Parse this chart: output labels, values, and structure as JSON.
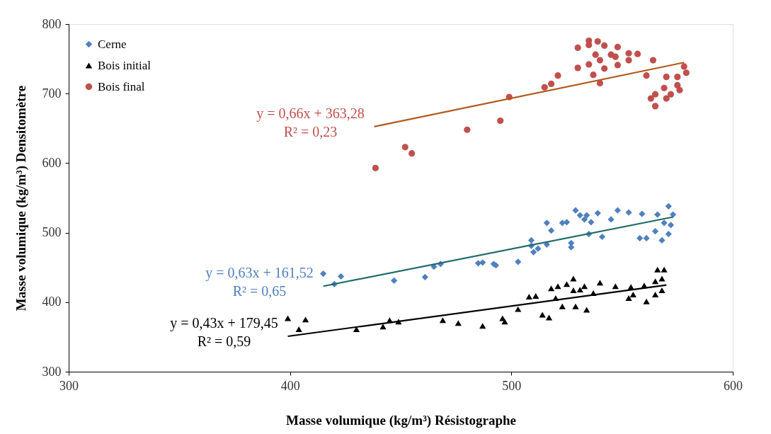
{
  "chart_data": {
    "type": "scatter",
    "xlabel": "Masse volumique (kg/m³) Résistographe",
    "ylabel": "Masse volumique (kg/m³) Densitomètre",
    "xlim": [
      300,
      600
    ],
    "xticks": [
      300,
      400,
      500,
      600
    ],
    "ylim": [
      300,
      800
    ],
    "yticks": [
      300,
      400,
      500,
      600,
      700,
      800
    ],
    "grid": false,
    "legend": "top left",
    "series": [
      {
        "name": "Cerne",
        "color": "#4f81bd",
        "marker": "diamond",
        "x": [
          415,
          420,
          423,
          447,
          461,
          465,
          468,
          485,
          487,
          492,
          493,
          503,
          509,
          509,
          510,
          512,
          516,
          516,
          518,
          523,
          525,
          527,
          527,
          529,
          531,
          533,
          534,
          536,
          539,
          535,
          541,
          545,
          548,
          553,
          559,
          558,
          561,
          565,
          568,
          571,
          569,
          572,
          566,
          571,
          573
        ],
        "values": [
          441,
          426,
          437,
          431,
          436,
          451,
          455,
          456,
          457,
          455,
          453,
          458,
          489,
          481,
          472,
          477,
          483,
          514,
          503,
          514,
          515,
          485,
          479,
          532,
          525,
          519,
          525,
          515,
          528,
          498,
          494,
          519,
          532,
          529,
          527,
          492,
          492,
          502,
          489,
          498,
          514,
          511,
          526,
          538,
          526
        ]
      },
      {
        "name": "Bois initial",
        "color": "#000000",
        "marker": "triangle",
        "x": [
          399,
          404,
          407,
          430,
          442,
          445,
          449,
          469,
          476,
          487,
          496,
          497,
          503,
          508,
          511,
          514,
          517,
          518,
          521,
          520,
          523,
          525,
          528,
          529,
          528,
          531,
          533,
          534,
          537,
          540,
          547,
          553,
          555,
          554,
          561,
          560,
          565,
          566,
          569,
          568,
          565,
          568
        ],
        "values": [
          377,
          361,
          375,
          361,
          365,
          374,
          372,
          374,
          370,
          366,
          377,
          372,
          390,
          408,
          409,
          382,
          378,
          420,
          423,
          406,
          394,
          426,
          434,
          394,
          417,
          418,
          423,
          389,
          413,
          428,
          423,
          406,
          411,
          422,
          401,
          424,
          430,
          447,
          447,
          434,
          411,
          417
        ]
      },
      {
        "name": "Bois final",
        "color": "#c0504d",
        "marker": "circle",
        "x": [
          438.6,
          452,
          455,
          480,
          495,
          499,
          515,
          518,
          521,
          530,
          530,
          535,
          535,
          539,
          542,
          548,
          538,
          535,
          540,
          545,
          547,
          537,
          540,
          542,
          548,
          553,
          557,
          553,
          564,
          561,
          570,
          575,
          578,
          579,
          569,
          575,
          563,
          565,
          570,
          572,
          576,
          565
        ],
        "values": [
          593,
          623,
          614,
          648,
          661,
          695,
          709,
          714,
          726,
          766,
          737,
          776,
          770,
          775,
          769,
          767,
          756,
          742,
          748,
          756,
          753,
          727,
          715,
          736,
          741,
          758,
          757,
          748,
          748,
          726,
          724,
          724,
          739,
          730,
          708,
          712,
          693,
          682,
          693,
          699,
          705,
          699
        ]
      },
      {
        "type": "line",
        "color": "#1f6b6b",
        "x": [
          415,
          573
        ],
        "values": [
          423,
          522.5
        ]
      },
      {
        "type": "line",
        "color": "#000000",
        "x": [
          399,
          570
        ],
        "values": [
          350.9,
          424.6
        ]
      },
      {
        "type": "line",
        "color": "#b35a1f",
        "x": [
          438,
          578
        ],
        "values": [
          652.4,
          744.8
        ]
      }
    ],
    "annotations": [
      "y = 0,63x + 161,52\nR² = 0,65",
      "y = 0,43x + 179,45\nR² = 0,59",
      "y = 0,66x + 363,28\nR² = 0,23"
    ]
  }
}
